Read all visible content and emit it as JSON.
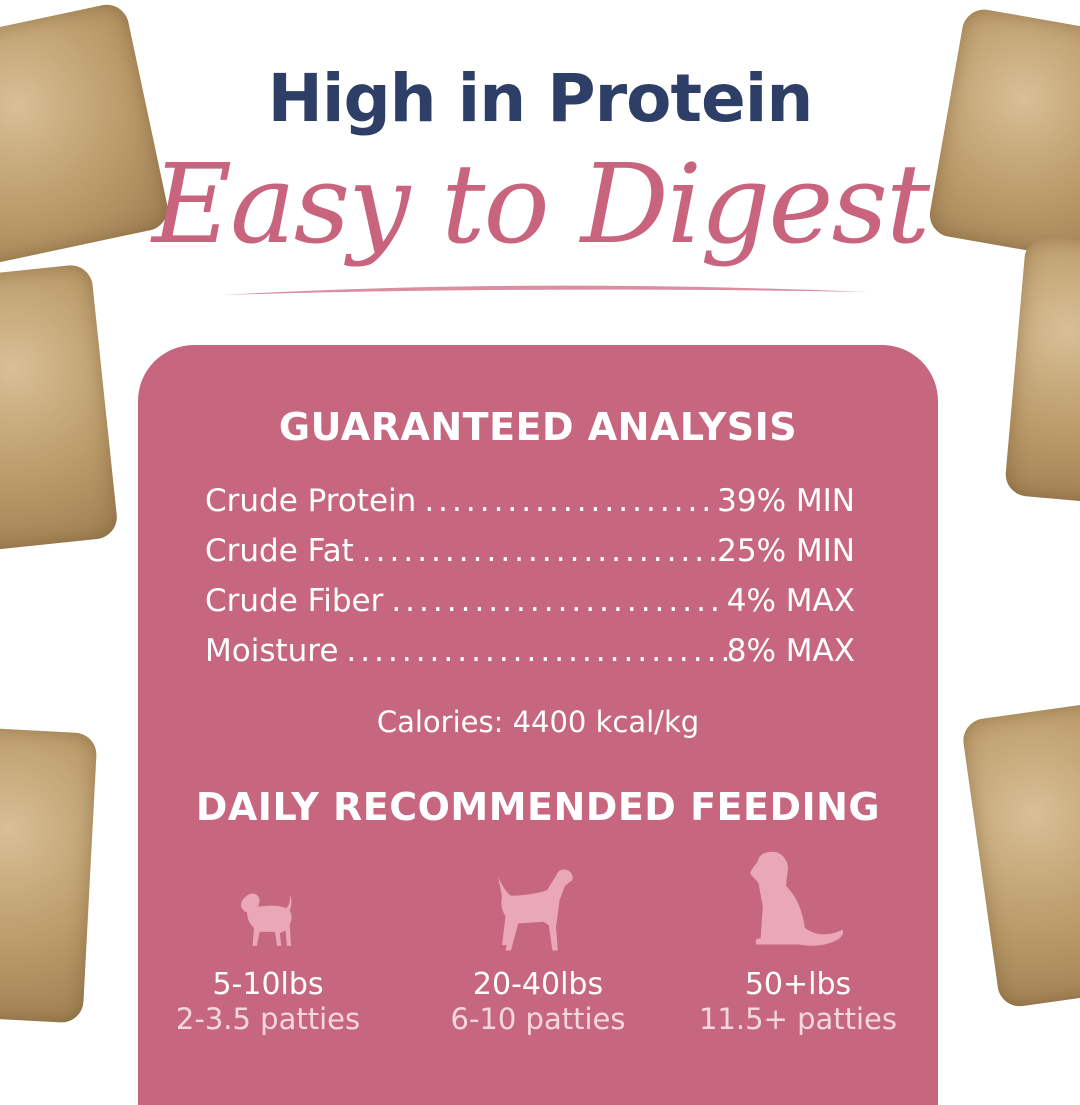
{
  "headline": "High in Protein",
  "subheadline": "Easy to Digest",
  "colors": {
    "navy": "#2d3f66",
    "pink": "#c9647e",
    "panel": "#c7677f"
  },
  "analysis": {
    "title": "GUARANTEED ANALYSIS",
    "rows": [
      {
        "label": "Crude Protein",
        "value": "39% MIN"
      },
      {
        "label": "Crude Fat",
        "value": "25% MIN"
      },
      {
        "label": "Crude Fiber",
        "value": "4% MAX"
      },
      {
        "label": "Moisture",
        "value": "8% MAX"
      }
    ],
    "calories": "Calories: 4400 kcal/kg"
  },
  "feeding": {
    "title": "DAILY RECOMMENDED FEEDING",
    "items": [
      {
        "icon": "small-dog-icon",
        "weight": "5-10lbs",
        "amount": "2-3.5 patties"
      },
      {
        "icon": "medium-dog-icon",
        "weight": "20-40lbs",
        "amount": "6-10 patties"
      },
      {
        "icon": "large-dog-icon",
        "weight": "50+lbs",
        "amount": "11.5+ patties"
      }
    ]
  }
}
